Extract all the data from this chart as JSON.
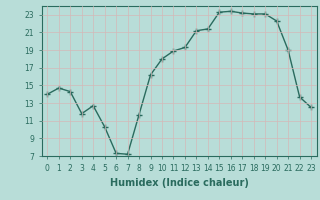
{
  "x": [
    0,
    1,
    2,
    3,
    4,
    5,
    6,
    7,
    8,
    9,
    10,
    11,
    12,
    13,
    14,
    15,
    16,
    17,
    18,
    19,
    20,
    21,
    22,
    23
  ],
  "y": [
    14.0,
    14.7,
    14.3,
    11.8,
    12.7,
    10.3,
    7.3,
    7.2,
    11.7,
    16.2,
    18.0,
    18.9,
    19.3,
    21.2,
    21.4,
    23.3,
    23.4,
    23.2,
    23.1,
    23.1,
    22.3,
    19.0,
    13.7,
    12.5
  ],
  "line_color": "#2a6b5e",
  "marker": "+",
  "background_color": "#b8ddd8",
  "grid_color": "#c8e8e2",
  "xlabel": "Humidex (Indice chaleur)",
  "ylim": [
    7,
    24
  ],
  "xlim_left": -0.5,
  "xlim_right": 23.5,
  "yticks": [
    7,
    9,
    11,
    13,
    15,
    17,
    19,
    21,
    23
  ],
  "xticks": [
    0,
    1,
    2,
    3,
    4,
    5,
    6,
    7,
    8,
    9,
    10,
    11,
    12,
    13,
    14,
    15,
    16,
    17,
    18,
    19,
    20,
    21,
    22,
    23
  ],
  "tick_fontsize": 5.5,
  "xlabel_fontsize": 7.0,
  "line_width": 1.0,
  "marker_size": 4,
  "marker_ew": 1.0
}
